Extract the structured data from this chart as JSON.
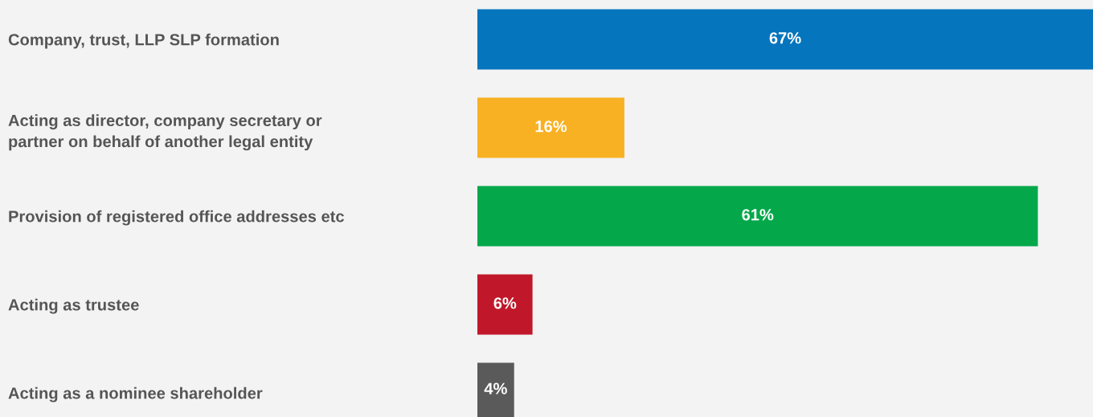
{
  "chart_data": {
    "type": "bar",
    "orientation": "horizontal",
    "categories": [
      "Company, trust, LLP SLP formation",
      "Acting as director, company secretary or\npartner on behalf of another legal entity",
      "Provision of registered office addresses etc",
      "Acting as trustee",
      "Acting as a nominee shareholder"
    ],
    "values": [
      67,
      16,
      61,
      6,
      4
    ],
    "colors": [
      "#0575bd",
      "#f8b122",
      "#04a84a",
      "#c0182a",
      "#5a5a5a"
    ],
    "value_labels": [
      "67%",
      "16%",
      "61%",
      "6%",
      "4%"
    ],
    "xlim": [
      0,
      67
    ],
    "tick_labels": "y",
    "grid": false,
    "legend": false
  }
}
